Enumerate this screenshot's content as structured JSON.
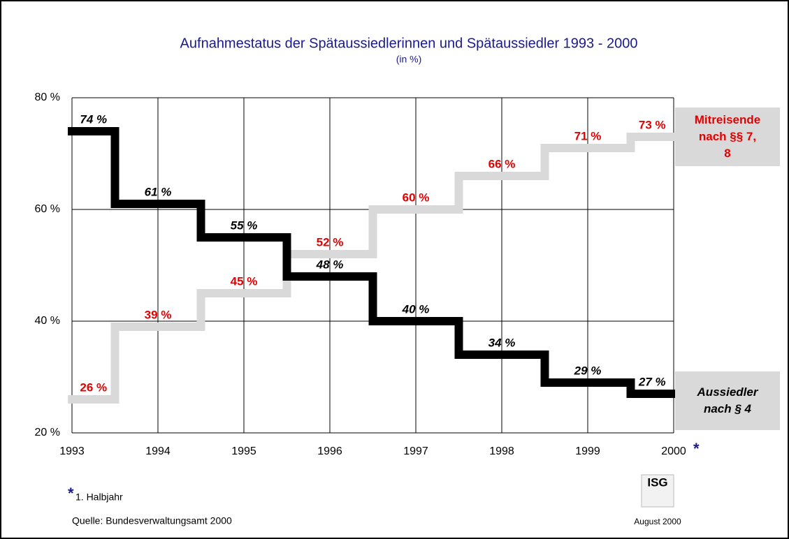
{
  "chart_data": {
    "type": "step",
    "title": "Aufnahmestatus der Spätaussiedlerinnen und Spätaussiedler 1993 - 2000",
    "subtitle": "(in %)",
    "x": [
      1993,
      1994,
      1995,
      1996,
      1997,
      1998,
      1999,
      2000
    ],
    "xlim": [
      1993,
      2000
    ],
    "xticks": [
      1993,
      1994,
      1995,
      1996,
      1997,
      1998,
      1999,
      2000
    ],
    "ylim": [
      20,
      80
    ],
    "yticks": [
      {
        "value": 20,
        "label": "20 %"
      },
      {
        "value": 40,
        "label": "40 %"
      },
      {
        "value": 60,
        "label": "60 %"
      },
      {
        "value": 80,
        "label": "80 %"
      }
    ],
    "grid": true,
    "series": [
      {
        "name": "Mitreisende nach §§ 7, 8",
        "color": "#d9d9d9",
        "label_color": "#e60000",
        "label_italic": false,
        "values": [
          26,
          39,
          45,
          52,
          60,
          66,
          71,
          73
        ],
        "value_labels": [
          "26 %",
          "39 %",
          "45 %",
          "52 %",
          "60 %",
          "66 %",
          "71 %",
          "73 %"
        ]
      },
      {
        "name": "Aussiedler nach § 4",
        "color": "#000000",
        "label_color": "#000000",
        "label_italic": true,
        "values": [
          74,
          61,
          55,
          48,
          40,
          34,
          29,
          27
        ],
        "value_labels": [
          "74 %",
          "61 %",
          "55 %",
          "48 %",
          "40 %",
          "34 %",
          "29 %",
          "27 %"
        ]
      }
    ],
    "footnote_marker": "*",
    "footnote": "1. Halbjahr",
    "source": "Quelle: Bundesverwaltungsamt 2000",
    "logo": "ISG",
    "date": "August 2000"
  }
}
